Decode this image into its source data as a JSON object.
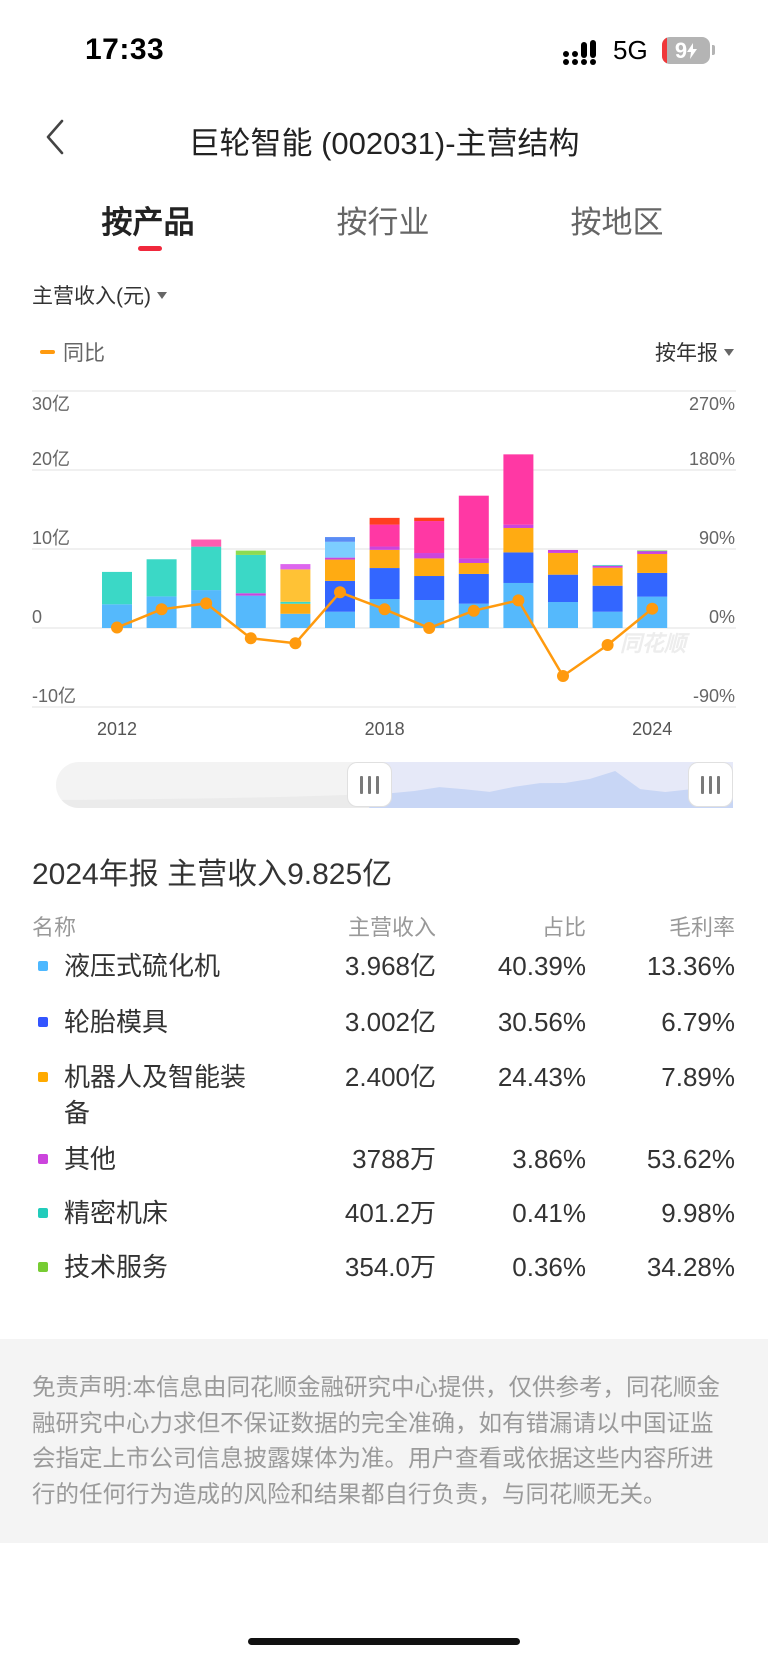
{
  "status_bar": {
    "time": "17:33",
    "network": "5G",
    "battery_level": "9",
    "battery_charging": true
  },
  "header": {
    "title": "巨轮智能 (002031)-主营结构",
    "back_icon": "chevron-left-icon"
  },
  "tabs": [
    {
      "label": "按产品",
      "active": true
    },
    {
      "label": "按行业",
      "active": false
    },
    {
      "label": "按地区",
      "active": false
    }
  ],
  "controls": {
    "metric_label": "主营收入(元)",
    "legend_label": "同比",
    "period_label": "按年报"
  },
  "colors": {
    "accent_red": "#f0283c",
    "yoy_line": "#ff9a0e"
  },
  "chart_data": {
    "type": "bar",
    "stacked": true,
    "categories": [
      "2012",
      "2013",
      "2014",
      "2015",
      "2016",
      "2017",
      "2018",
      "2019",
      "2020",
      "2021",
      "2022",
      "2023",
      "2024"
    ],
    "x_tick_labels": [
      "2012",
      "2018",
      "2024"
    ],
    "ylabel_left_unit": "亿",
    "ylim_left": [
      -10,
      30
    ],
    "yticks_left": [
      {
        "value": 30,
        "label": "30亿"
      },
      {
        "value": 20,
        "label": "20亿"
      },
      {
        "value": 10,
        "label": "10亿"
      },
      {
        "value": 0,
        "label": "0"
      },
      {
        "value": -10,
        "label": "-10亿"
      }
    ],
    "ylim_right": [
      -90,
      270
    ],
    "yticks_right": [
      {
        "value": 270,
        "label": "270%"
      },
      {
        "value": 180,
        "label": "180%"
      },
      {
        "value": 90,
        "label": "90%"
      },
      {
        "value": 0,
        "label": "0%"
      },
      {
        "value": -90,
        "label": "-90%"
      }
    ],
    "grid": true,
    "legend_position": "top-left",
    "watermark": "同花顺",
    "series": [
      {
        "key": "hydraulic",
        "name": "液压式硫化机",
        "color": "#55b9fc"
      },
      {
        "key": "mold",
        "name": "轮胎模具",
        "color": "#3366ff"
      },
      {
        "key": "robot",
        "name": "机器人及智能装备",
        "color": "#ffab12"
      },
      {
        "key": "other",
        "name": "其他",
        "color": "#cc44dd"
      },
      {
        "key": "machine",
        "name": "精密机床",
        "color": "#3bd8c6"
      },
      {
        "key": "service",
        "name": "技术服务",
        "color": "#8ddb52"
      },
      {
        "key": "u_pink",
        "name": null,
        "color": "#ff38a4"
      },
      {
        "key": "u_red",
        "name": null,
        "color": "#ff3f1f"
      },
      {
        "key": "u_sky",
        "name": null,
        "color": "#7ccdff"
      },
      {
        "key": "u_cap",
        "name": null,
        "color": "#5a8cf5"
      },
      {
        "key": "u_yellow",
        "name": null,
        "color": "#ffc235"
      },
      {
        "key": "u_rose",
        "name": null,
        "color": "#ff5cb0"
      },
      {
        "key": "u_violet",
        "name": null,
        "color": "#dd66ee"
      }
    ],
    "stacks": [
      {
        "year": "2012",
        "segments": [
          {
            "s": "hydraulic",
            "v": 3.0
          },
          {
            "s": "machine",
            "v": 4.1
          }
        ]
      },
      {
        "year": "2013",
        "segments": [
          {
            "s": "hydraulic",
            "v": 4.0
          },
          {
            "s": "machine",
            "v": 4.7
          }
        ]
      },
      {
        "year": "2014",
        "segments": [
          {
            "s": "hydraulic",
            "v": 4.8
          },
          {
            "s": "machine",
            "v": 5.5
          },
          {
            "s": "u_rose",
            "v": 0.9
          }
        ]
      },
      {
        "year": "2015",
        "segments": [
          {
            "s": "hydraulic",
            "v": 4.1
          },
          {
            "s": "other",
            "v": 0.3
          },
          {
            "s": "machine",
            "v": 4.85
          },
          {
            "s": "service",
            "v": 0.55
          }
        ]
      },
      {
        "year": "2016",
        "segments": [
          {
            "s": "hydraulic",
            "v": 1.8
          },
          {
            "s": "robot",
            "v": 1.27
          },
          {
            "s": "machine",
            "v": 0.25
          },
          {
            "s": "u_yellow",
            "v": 4.1
          },
          {
            "s": "u_violet",
            "v": 0.67
          }
        ]
      },
      {
        "year": "2017",
        "segments": [
          {
            "s": "hydraulic",
            "v": 2.06
          },
          {
            "s": "mold",
            "v": 3.9
          },
          {
            "s": "robot",
            "v": 2.7
          },
          {
            "s": "other",
            "v": 0.25
          },
          {
            "s": "u_sky",
            "v": 2.0
          },
          {
            "s": "u_cap",
            "v": 0.6
          }
        ]
      },
      {
        "year": "2018",
        "segments": [
          {
            "s": "hydraulic",
            "v": 3.67
          },
          {
            "s": "mold",
            "v": 3.92
          },
          {
            "s": "robot",
            "v": 2.3
          },
          {
            "s": "other",
            "v": 0.42
          },
          {
            "s": "u_pink",
            "v": 2.78
          },
          {
            "s": "u_red",
            "v": 0.85
          }
        ]
      },
      {
        "year": "2019",
        "segments": [
          {
            "s": "hydraulic",
            "v": 3.54
          },
          {
            "s": "mold",
            "v": 3.04
          },
          {
            "s": "robot",
            "v": 2.23
          },
          {
            "s": "other",
            "v": 0.68
          },
          {
            "s": "u_pink",
            "v": 4.05
          },
          {
            "s": "u_red",
            "v": 0.42
          }
        ]
      },
      {
        "year": "2020",
        "segments": [
          {
            "s": "hydraulic",
            "v": 3.08
          },
          {
            "s": "mold",
            "v": 3.76
          },
          {
            "s": "robot",
            "v": 1.39
          },
          {
            "s": "other",
            "v": 0.58
          },
          {
            "s": "u_pink",
            "v": 7.94
          }
        ]
      },
      {
        "year": "2021",
        "segments": [
          {
            "s": "hydraulic",
            "v": 5.7
          },
          {
            "s": "mold",
            "v": 3.87
          },
          {
            "s": "robot",
            "v": 3.09
          },
          {
            "s": "other",
            "v": 0.42
          },
          {
            "s": "u_pink",
            "v": 8.9
          }
        ]
      },
      {
        "year": "2022",
        "segments": [
          {
            "s": "hydraulic",
            "v": 3.29
          },
          {
            "s": "mold",
            "v": 3.46
          },
          {
            "s": "robot",
            "v": 2.75
          },
          {
            "s": "other",
            "v": 0.38
          }
        ]
      },
      {
        "year": "2023",
        "segments": [
          {
            "s": "hydraulic",
            "v": 2.06
          },
          {
            "s": "mold",
            "v": 3.29
          },
          {
            "s": "robot",
            "v": 2.28
          },
          {
            "s": "other",
            "v": 0.25
          },
          {
            "s": "machine",
            "v": 0.1
          }
        ]
      },
      {
        "year": "2024",
        "segments": [
          {
            "s": "hydraulic",
            "v": 3.968
          },
          {
            "s": "mold",
            "v": 3.002
          },
          {
            "s": "robot",
            "v": 2.4
          },
          {
            "s": "other",
            "v": 0.3788
          },
          {
            "s": "machine",
            "v": 0.0401
          },
          {
            "s": "service",
            "v": 0.0354
          }
        ]
      }
    ],
    "line": {
      "name": "同比",
      "axis": "right",
      "unit": "%",
      "values": [
        0.5,
        21.3,
        28.1,
        -11.7,
        -17.4,
        40.7,
        21.3,
        0.0,
        19.7,
        31.5,
        -54.7,
        -19.4,
        22.0
      ]
    }
  },
  "range_slider": {
    "start_fraction": 0.46,
    "end_fraction": 1.0
  },
  "summary": {
    "title": "2024年报 主营收入9.825亿"
  },
  "table": {
    "headers": {
      "name": "名称",
      "revenue": "主营收入",
      "share": "占比",
      "margin": "毛利率"
    },
    "rows": [
      {
        "name": "液压式硫化机",
        "revenue": "3.968亿",
        "share": "40.39%",
        "margin": "13.36%",
        "color": "#4db8ff"
      },
      {
        "name": "轮胎模具",
        "revenue": "3.002亿",
        "share": "30.56%",
        "margin": "6.79%",
        "color": "#3355ff"
      },
      {
        "name": "机器人及智能装备",
        "revenue": "2.400亿",
        "share": "24.43%",
        "margin": "7.89%",
        "color": "#ffaa00"
      },
      {
        "name": "其他",
        "revenue": "3788万",
        "share": "3.86%",
        "margin": "53.62%",
        "color": "#cc44dd"
      },
      {
        "name": "精密机床",
        "revenue": "401.2万",
        "share": "0.41%",
        "margin": "9.98%",
        "color": "#22ccbb"
      },
      {
        "name": "技术服务",
        "revenue": "354.0万",
        "share": "0.36%",
        "margin": "34.28%",
        "color": "#77cc33"
      }
    ]
  },
  "disclaimer": "免责声明:本信息由同花顺金融研究中心提供，仅供参考，同花顺金融研究中心力求但不保证数据的完全准确，如有错漏请以中国证监会指定上市公司信息披露媒体为准。用户查看或依据这些内容所进行的任何行为造成的风险和结果都自行负责，与同花顺无关。"
}
